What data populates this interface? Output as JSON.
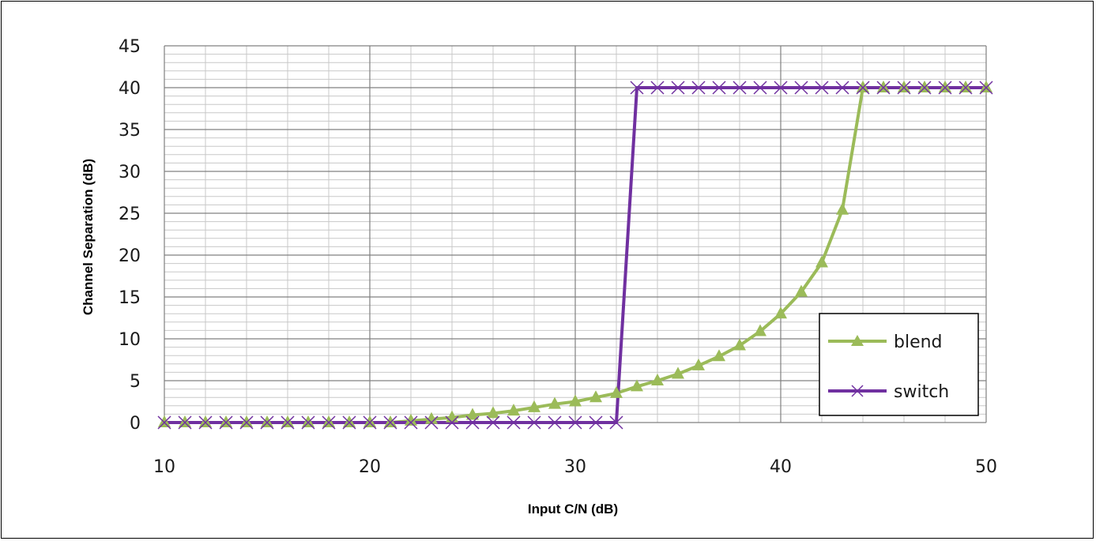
{
  "chart_data": {
    "type": "line",
    "title": "",
    "xlabel": "Input C/N (dB)",
    "ylabel": "Channel Separation (dB)",
    "xlim": [
      10,
      50
    ],
    "ylim": [
      0,
      45
    ],
    "x_ticks": [
      "10",
      "20",
      "30",
      "40",
      "50"
    ],
    "y_ticks": [
      "0",
      "5",
      "10",
      "15",
      "20",
      "25",
      "30",
      "35",
      "40",
      "45"
    ],
    "grid": true,
    "legend_position": "bottom-right",
    "series": [
      {
        "name": "blend",
        "color": "#9BBB59",
        "marker": "triangle",
        "x": [
          10,
          11,
          12,
          13,
          14,
          15,
          16,
          17,
          18,
          19,
          20,
          21,
          22,
          23,
          24,
          25,
          26,
          27,
          28,
          29,
          30,
          31,
          32,
          33,
          34,
          35,
          36,
          37,
          38,
          39,
          40,
          41,
          42,
          43,
          44,
          45,
          46,
          47,
          48,
          49,
          50
        ],
        "y": [
          0,
          0,
          0,
          0,
          0,
          0,
          0,
          0,
          0,
          0,
          0,
          0,
          0.2,
          0.4,
          0.6,
          0.9,
          1.1,
          1.4,
          1.8,
          2.2,
          2.5,
          3.0,
          3.5,
          4.3,
          5.0,
          5.8,
          6.8,
          7.9,
          9.2,
          10.9,
          13.0,
          15.6,
          19.1,
          25.4,
          40,
          40,
          40,
          40,
          40,
          40,
          40
        ]
      },
      {
        "name": "switch",
        "color": "#7030A0",
        "marker": "x",
        "x": [
          10,
          11,
          12,
          13,
          14,
          15,
          16,
          17,
          18,
          19,
          20,
          21,
          22,
          23,
          24,
          25,
          26,
          27,
          28,
          29,
          30,
          31,
          32,
          33,
          34,
          35,
          36,
          37,
          38,
          39,
          40,
          41,
          42,
          43,
          44,
          45,
          46,
          47,
          48,
          49,
          50
        ],
        "y": [
          0,
          0,
          0,
          0,
          0,
          0,
          0,
          0,
          0,
          0,
          0,
          0,
          0,
          0,
          0,
          0,
          0,
          0,
          0,
          0,
          0,
          0,
          0,
          40,
          40,
          40,
          40,
          40,
          40,
          40,
          40,
          40,
          40,
          40,
          40,
          40,
          40,
          40,
          40,
          40,
          40
        ]
      }
    ]
  }
}
